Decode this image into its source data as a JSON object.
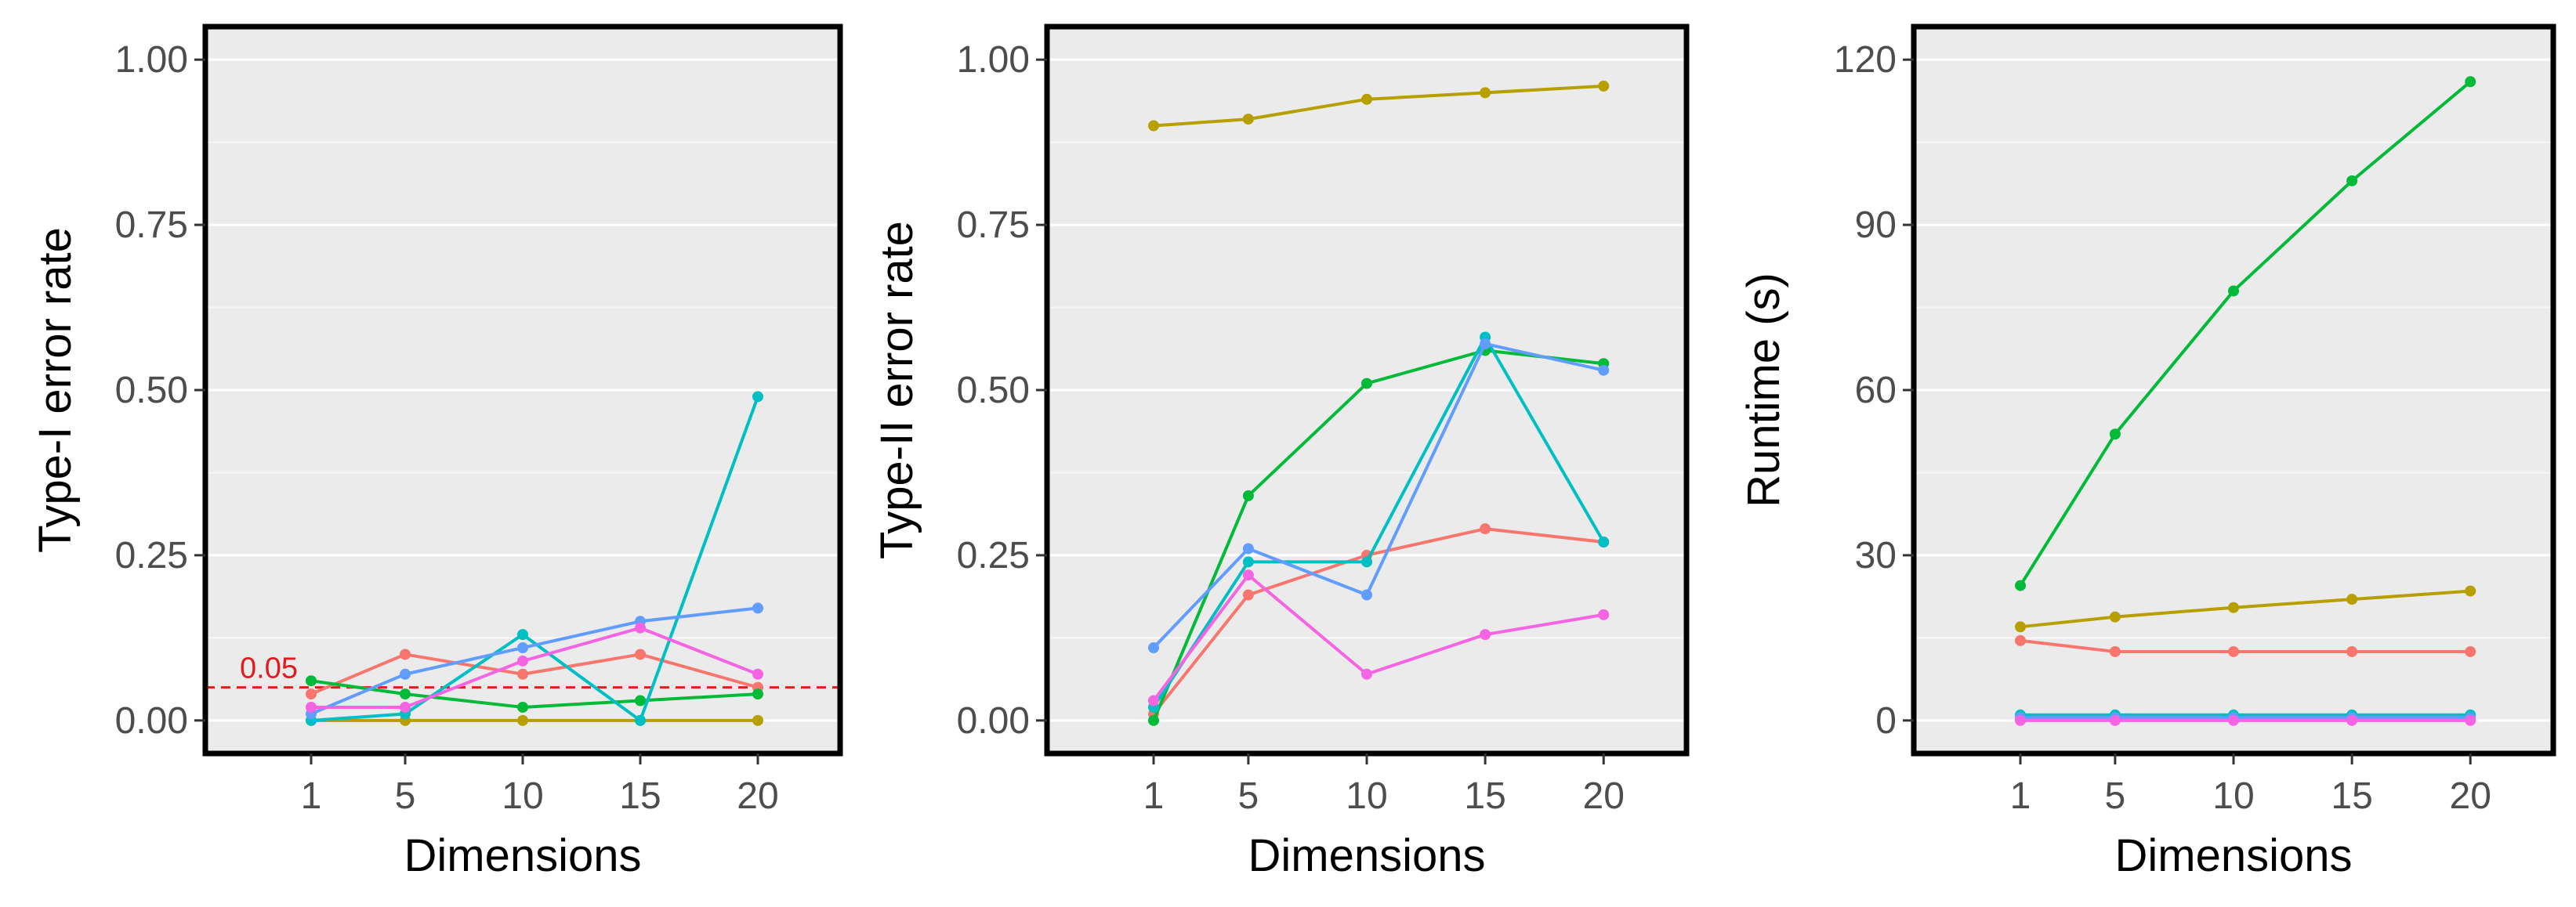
{
  "chart_data": [
    {
      "type": "line",
      "title": "",
      "xlabel": "Dimensions",
      "ylabel": "Type-I error rate",
      "x": [
        1,
        5,
        10,
        15,
        20
      ],
      "xlim": [
        -3.5,
        23.5
      ],
      "ylim": [
        -0.05,
        1.05
      ],
      "yticks": [
        0.0,
        0.25,
        0.5,
        0.75,
        1.0
      ],
      "ytick_labels": [
        "0.00",
        "0.25",
        "0.50",
        "0.75",
        "1.00"
      ],
      "xticks": [
        1,
        5,
        10,
        15,
        20
      ],
      "xtick_labels": [
        "1",
        "5",
        "10",
        "15",
        "20"
      ],
      "grid": true,
      "reference_line": {
        "y": 0.05,
        "label": "0.05",
        "color": "#e41a1c"
      },
      "series": [
        {
          "name": "salmon",
          "color": "#F8766D",
          "values": [
            0.04,
            0.1,
            0.07,
            0.1,
            0.05
          ]
        },
        {
          "name": "gold",
          "color": "#B79F00",
          "values": [
            0.0,
            0.0,
            0.0,
            0.0,
            0.0
          ]
        },
        {
          "name": "green",
          "color": "#00BA38",
          "values": [
            0.06,
            0.04,
            0.02,
            0.03,
            0.04
          ]
        },
        {
          "name": "cyan",
          "color": "#00BFC4",
          "values": [
            0.0,
            0.01,
            0.13,
            0.0,
            0.49
          ]
        },
        {
          "name": "blue",
          "color": "#619CFF",
          "values": [
            0.01,
            0.07,
            0.11,
            0.15,
            0.17
          ]
        },
        {
          "name": "magenta",
          "color": "#F564E3",
          "values": [
            0.02,
            0.02,
            0.09,
            0.14,
            0.07
          ]
        }
      ]
    },
    {
      "type": "line",
      "title": "",
      "xlabel": "Dimensions",
      "ylabel": "Type-II error rate",
      "x": [
        1,
        5,
        10,
        15,
        20
      ],
      "xlim": [
        -3.5,
        23.5
      ],
      "ylim": [
        -0.05,
        1.05
      ],
      "yticks": [
        0.0,
        0.25,
        0.5,
        0.75,
        1.0
      ],
      "ytick_labels": [
        "0.00",
        "0.25",
        "0.50",
        "0.75",
        "1.00"
      ],
      "xticks": [
        1,
        5,
        10,
        15,
        20
      ],
      "xtick_labels": [
        "1",
        "5",
        "10",
        "15",
        "20"
      ],
      "grid": true,
      "series": [
        {
          "name": "salmon",
          "color": "#F8766D",
          "values": [
            0.01,
            0.19,
            0.25,
            0.29,
            0.27
          ]
        },
        {
          "name": "gold",
          "color": "#B79F00",
          "values": [
            0.9,
            0.91,
            0.94,
            0.95,
            0.96
          ]
        },
        {
          "name": "green",
          "color": "#00BA38",
          "values": [
            0.0,
            0.34,
            0.51,
            0.56,
            0.54
          ]
        },
        {
          "name": "cyan",
          "color": "#00BFC4",
          "values": [
            0.02,
            0.24,
            0.24,
            0.58,
            0.27
          ]
        },
        {
          "name": "blue",
          "color": "#619CFF",
          "values": [
            0.11,
            0.26,
            0.19,
            0.57,
            0.53
          ]
        },
        {
          "name": "magenta",
          "color": "#F564E3",
          "values": [
            0.03,
            0.22,
            0.07,
            0.13,
            0.16
          ]
        }
      ]
    },
    {
      "type": "line",
      "title": "",
      "xlabel": "Dimensions",
      "ylabel": "Runtime (s)",
      "x": [
        1,
        5,
        10,
        15,
        20
      ],
      "xlim": [
        -3.5,
        23.5
      ],
      "ylim": [
        -6,
        126
      ],
      "yticks": [
        0,
        30,
        60,
        90,
        120
      ],
      "ytick_labels": [
        "0",
        "30",
        "60",
        "90",
        "120"
      ],
      "xticks": [
        1,
        5,
        10,
        15,
        20
      ],
      "xtick_labels": [
        "1",
        "5",
        "10",
        "15",
        "20"
      ],
      "grid": true,
      "series": [
        {
          "name": "salmon",
          "color": "#F8766D",
          "values": [
            14.5,
            12.5,
            12.5,
            12.5,
            12.5
          ]
        },
        {
          "name": "gold",
          "color": "#B79F00",
          "values": [
            17,
            18.8,
            20.5,
            22,
            23.5
          ]
        },
        {
          "name": "green",
          "color": "#00BA38",
          "values": [
            24.5,
            52,
            78,
            98,
            116
          ]
        },
        {
          "name": "cyan",
          "color": "#00BFC4",
          "values": [
            1,
            1,
            1,
            1,
            1
          ]
        },
        {
          "name": "blue",
          "color": "#619CFF",
          "values": [
            0.5,
            0.5,
            0.5,
            0.5,
            0.5
          ]
        },
        {
          "name": "magenta",
          "color": "#F564E3",
          "values": [
            0,
            0,
            0,
            0,
            0
          ]
        }
      ]
    }
  ]
}
